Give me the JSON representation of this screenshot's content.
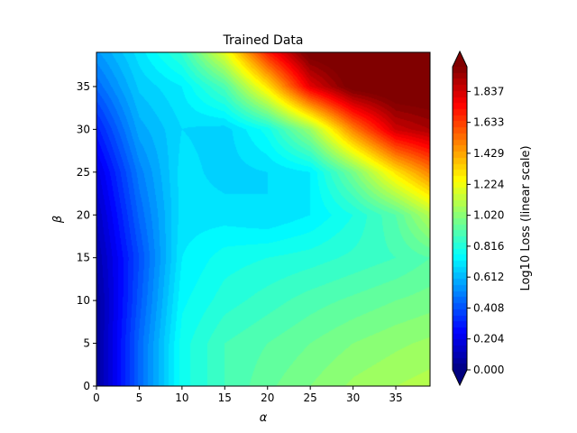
{
  "chart_data": {
    "type": "heatmap",
    "title": "Trained Data",
    "xlabel": "α",
    "ylabel": "β",
    "xlim": [
      0,
      39
    ],
    "ylim": [
      0,
      39
    ],
    "x_ticks": [
      0,
      5,
      10,
      15,
      20,
      25,
      30,
      35
    ],
    "y_ticks": [
      0,
      5,
      10,
      15,
      20,
      25,
      30,
      35
    ],
    "colorbar": {
      "label": "Log10 Loss (linear scale)",
      "colormap": "jet",
      "range": [
        0.0,
        2.0
      ],
      "extend": "both",
      "levels": 50,
      "ticks": [
        "0.000",
        "0.204",
        "0.408",
        "0.612",
        "0.816",
        "1.020",
        "1.224",
        "1.429",
        "1.633",
        "1.837"
      ]
    },
    "field_grid": {
      "alpha": [
        0,
        5,
        10,
        15,
        20,
        25,
        30,
        35,
        39
      ],
      "beta": [
        0,
        5,
        10,
        15,
        20,
        25,
        30,
        35,
        39
      ],
      "values": [
        [
          0.05,
          0.45,
          0.78,
          0.88,
          0.95,
          1.0,
          1.05,
          1.08,
          1.1
        ],
        [
          0.05,
          0.45,
          0.78,
          0.88,
          0.92,
          0.96,
          1.0,
          1.03,
          1.05
        ],
        [
          0.05,
          0.42,
          0.75,
          0.82,
          0.86,
          0.9,
          0.93,
          0.96,
          0.98
        ],
        [
          0.08,
          0.4,
          0.72,
          0.78,
          0.8,
          0.82,
          0.85,
          0.88,
          0.92
        ],
        [
          0.12,
          0.45,
          0.7,
          0.7,
          0.68,
          0.72,
          0.8,
          0.92,
          1.1
        ],
        [
          0.18,
          0.5,
          0.7,
          0.66,
          0.68,
          0.72,
          0.98,
          1.3,
          1.5
        ],
        [
          0.3,
          0.58,
          0.68,
          0.66,
          0.78,
          1.05,
          1.5,
          1.85,
          1.92
        ],
        [
          0.45,
          0.65,
          0.72,
          0.9,
          1.3,
          1.8,
          2.05,
          2.1,
          2.1
        ],
        [
          0.55,
          0.7,
          0.85,
          1.2,
          1.7,
          2.05,
          2.1,
          2.1,
          2.1
        ]
      ]
    }
  }
}
